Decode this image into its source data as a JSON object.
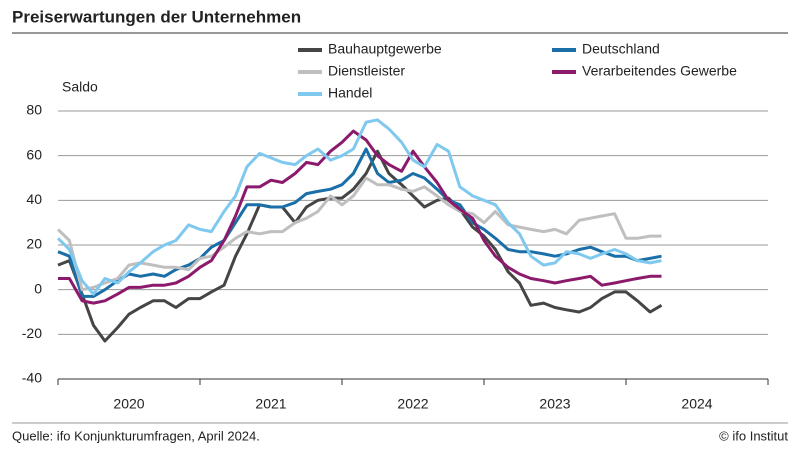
{
  "chart_data": {
    "type": "line",
    "title": "Preiserwartungen der Unternehmen",
    "y_label": "Saldo",
    "source": "Quelle: ifo Konjunkturumfragen, April 2024.",
    "credit": "© ifo Institut",
    "x": [
      2020,
      2020.08,
      2020.17,
      2020.25,
      2020.33,
      2020.42,
      2020.5,
      2020.58,
      2020.67,
      2020.75,
      2020.83,
      2020.92,
      2021,
      2021.08,
      2021.17,
      2021.25,
      2021.33,
      2021.42,
      2021.5,
      2021.58,
      2021.67,
      2021.75,
      2021.83,
      2021.92,
      2022,
      2022.08,
      2022.17,
      2022.25,
      2022.33,
      2022.42,
      2022.5,
      2022.58,
      2022.67,
      2022.75,
      2022.83,
      2022.92,
      2023,
      2023.08,
      2023.17,
      2023.25,
      2023.33,
      2023.42,
      2023.5,
      2023.58,
      2023.67,
      2023.75,
      2023.83,
      2023.92,
      2024,
      2024.08,
      2024.17,
      2024.25
    ],
    "xlim": [
      2020,
      2025
    ],
    "xticks": [
      2020,
      2021,
      2022,
      2023,
      2024,
      2025
    ],
    "xlabels": [
      2020,
      2021,
      2022,
      2023,
      2024
    ],
    "ylim": [
      -40,
      80
    ],
    "yticks": [
      -40,
      -20,
      0,
      20,
      40,
      60,
      80
    ],
    "grid": true,
    "series": [
      {
        "name": "Bauhauptgewerbe",
        "color": "#454545",
        "values": [
          11,
          13,
          -2,
          -16,
          -23,
          -17,
          -11,
          -8,
          -5,
          -5,
          -8,
          -4,
          -4,
          -1,
          2,
          15,
          25,
          38,
          37,
          37,
          30,
          37,
          40,
          41,
          41,
          45,
          52,
          62,
          52,
          47,
          42,
          37,
          40,
          41,
          36,
          28,
          24,
          18,
          8,
          3,
          -7,
          -6,
          -8,
          -9,
          -10,
          -8,
          -4,
          -1,
          -1,
          -5,
          -10,
          -7
        ]
      },
      {
        "name": "Deutschland",
        "color": "#1b6fa8",
        "values": [
          17,
          15,
          -3,
          -3,
          0,
          4,
          7,
          6,
          7,
          6,
          9,
          11,
          14,
          19,
          22,
          30,
          38,
          38,
          37,
          37,
          39,
          43,
          44,
          45,
          47,
          52,
          63,
          52,
          48,
          49,
          52,
          50,
          45,
          40,
          38,
          30,
          27,
          23,
          18,
          17,
          17,
          16,
          15,
          16,
          18,
          19,
          17,
          15,
          15,
          13,
          14,
          15
        ]
      },
      {
        "name": "Dienstleister",
        "color": "#bfbfbf",
        "values": [
          27,
          22,
          0,
          1,
          3,
          5,
          11,
          12,
          11,
          10,
          10,
          9,
          14,
          15,
          19,
          23,
          26,
          25,
          26,
          26,
          30,
          32,
          35,
          42,
          38,
          42,
          50,
          47,
          47,
          45,
          44,
          46,
          42,
          38,
          35,
          34,
          30,
          35,
          29,
          28,
          27,
          26,
          27,
          25,
          31,
          32,
          33,
          34,
          23,
          23,
          24,
          24
        ]
      },
      {
        "name": "Verarbeitendes Gewerbe",
        "color": "#8c1a6c",
        "values": [
          5,
          5,
          -5,
          -6,
          -5,
          -2,
          1,
          1,
          2,
          2,
          3,
          6,
          10,
          13,
          22,
          33,
          46,
          46,
          49,
          48,
          52,
          57,
          56,
          62,
          66,
          71,
          67,
          60,
          56,
          53,
          62,
          55,
          48,
          40,
          36,
          32,
          22,
          15,
          10,
          7,
          5,
          4,
          3,
          4,
          5,
          6,
          2,
          3,
          4,
          5,
          6,
          6
        ]
      },
      {
        "name": "Handel",
        "color": "#7fc8ee",
        "values": [
          23,
          18,
          4,
          -2,
          5,
          3,
          8,
          12,
          17,
          20,
          22,
          29,
          27,
          26,
          35,
          42,
          55,
          61,
          59,
          57,
          56,
          60,
          63,
          58,
          60,
          63,
          75,
          76,
          72,
          66,
          58,
          55,
          65,
          62,
          46,
          42,
          40,
          38,
          30,
          25,
          15,
          11,
          12,
          17,
          16,
          14,
          16,
          18,
          16,
          13,
          12,
          13
        ]
      }
    ]
  }
}
